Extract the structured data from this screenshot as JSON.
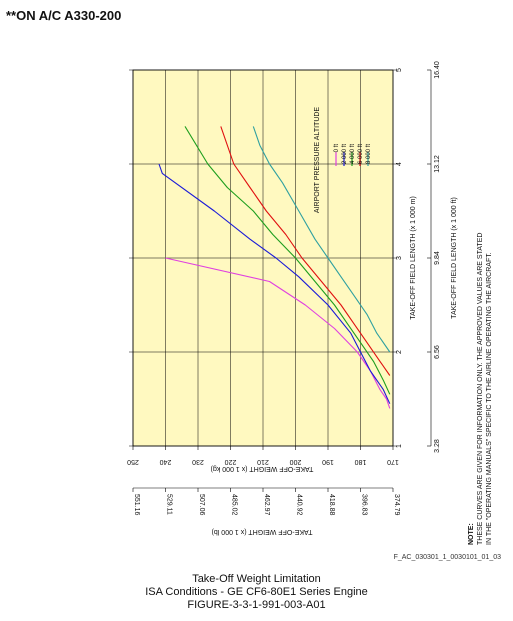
{
  "header_note": "**ON A/C A330-200",
  "figure_ref": "F_AC_030301_1_0030101_01_03",
  "caption": {
    "line1": "Take-Off Weight Limitation",
    "line2": "ISA Conditions - GE CF6-80E1 Series Engine",
    "line3": "FIGURE-3-3-1-991-003-A01"
  },
  "note": {
    "label": "NOTE:",
    "line1": "THESE CURVES ARE GIVEN FOR INFORMATION ONLY. THE APPROVED VALUES ARE STATED",
    "line2": "IN THE \"OPERATING MANUALS\" SPECIFIC TO THE AIRLINE OPERATING THE AIRCRAFT."
  },
  "colors": {
    "plot_background": "#FFF9C0",
    "grid": "#000000"
  },
  "chart_data": {
    "type": "line",
    "orientation": "rotated 90° counter-clockwise",
    "x": {
      "label": "TAKE-OFF FIELD LENGTH (x 1 000 m)",
      "range": [
        1,
        5
      ],
      "ticks": [
        "1",
        "2",
        "3",
        "4",
        "5"
      ],
      "secondary_label": "TAKE-OFF FIELD LENGTH (x 1 000 ft)",
      "secondary_ticks": [
        "3.28",
        "6.56",
        "9.84",
        "13.12",
        "16.40"
      ]
    },
    "y": {
      "label": "TAKE-OFF WEIGHT (x 1 000 kg)",
      "range": [
        170,
        250
      ],
      "ticks": [
        "250",
        "240",
        "230",
        "220",
        "210",
        "200",
        "190",
        "180",
        "170"
      ],
      "secondary_label": "TAKE-OFF WEIGHT (x 1 000 lb)",
      "secondary_ticks": [
        "551.16",
        "529.11",
        "507.06",
        "485.02",
        "462.97",
        "440.92",
        "418.88",
        "396.83",
        "374.79"
      ]
    },
    "legend": {
      "title": "AIRPORT PRESSURE ALTITUDE",
      "placement": "upper area"
    },
    "series": [
      {
        "name": "0 ft",
        "color": "#E040E0",
        "x": [
          1.4,
          1.5,
          1.6,
          1.8,
          2.0,
          2.25,
          2.5,
          2.75,
          3.0
        ],
        "y": [
          171,
          172,
          174,
          177,
          181,
          188,
          197,
          208,
          240
        ]
      },
      {
        "name": "2 000 ft",
        "color": "#1A1AD8",
        "x": [
          1.45,
          1.6,
          1.8,
          2.0,
          2.2,
          2.5,
          2.8,
          3.0,
          3.2,
          3.5,
          3.9,
          4.0
        ],
        "y": [
          171,
          173,
          177,
          180,
          183,
          190,
          199,
          206,
          214,
          225,
          241,
          242
        ]
      },
      {
        "name": "4 000 ft",
        "color": "#1E9E1E",
        "x": [
          1.55,
          1.7,
          1.9,
          2.1,
          2.3,
          2.5,
          2.75,
          3.0,
          3.25,
          3.5,
          3.75,
          4.0,
          4.4
        ],
        "y": [
          171,
          173,
          176,
          180,
          184,
          188,
          194,
          200,
          207,
          213,
          221,
          227,
          234
        ]
      },
      {
        "name": "6 000 ft",
        "color": "#E01010",
        "x": [
          1.75,
          1.9,
          2.1,
          2.3,
          2.5,
          2.75,
          3.0,
          3.25,
          3.5,
          3.75,
          4.0,
          4.4
        ],
        "y": [
          171,
          174,
          178,
          182,
          186,
          192,
          198,
          203,
          209,
          214,
          219,
          223
        ]
      },
      {
        "name": "8 000 ft",
        "color": "#30A0A0",
        "x": [
          2.0,
          2.2,
          2.4,
          2.6,
          2.8,
          3.0,
          3.2,
          3.5,
          3.8,
          4.0,
          4.2,
          4.4
        ],
        "y": [
          171,
          175,
          178,
          182,
          186,
          190,
          194,
          199,
          204,
          208,
          211,
          213
        ]
      }
    ]
  }
}
